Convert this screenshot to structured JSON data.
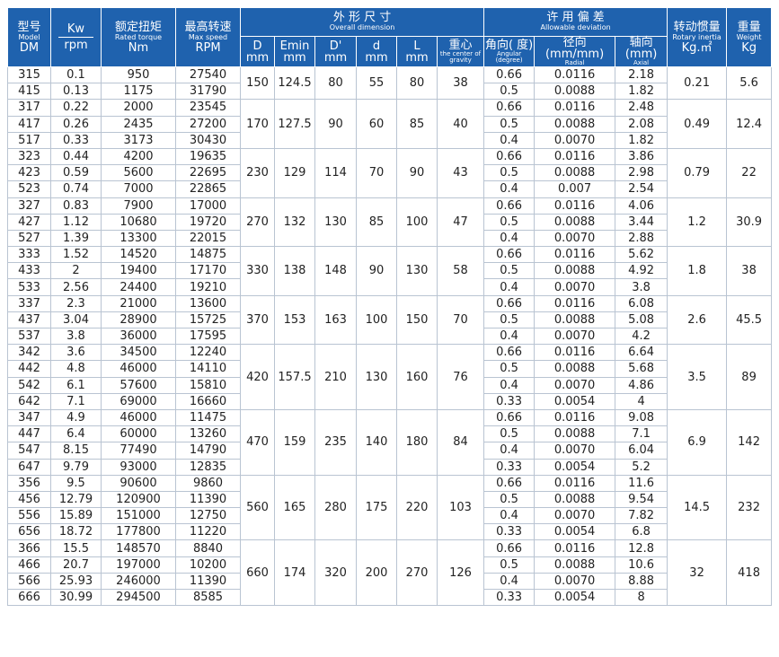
{
  "header": {
    "model": {
      "cn": "型号",
      "en": "Model",
      "unit": "DM"
    },
    "kw": {
      "top": "Kw",
      "bottom": "rpm"
    },
    "torque": {
      "cn": "额定扭矩",
      "en": "Rated torque",
      "unit": "Nm"
    },
    "speed": {
      "cn": "最高转速",
      "en": "Max speed",
      "unit": "RPM"
    },
    "dimension": {
      "cn": "外 形 尺 寸",
      "en": "Overall dimension",
      "columns": [
        {
          "label": "D",
          "unit": "mm"
        },
        {
          "label": "Emin",
          "unit": "mm"
        },
        {
          "label": "D'",
          "unit": "mm"
        },
        {
          "label": "d",
          "unit": "mm"
        },
        {
          "label": "L",
          "unit": "mm"
        },
        {
          "label": "重心",
          "unit": "the center of gravity"
        }
      ]
    },
    "deviation": {
      "cn": "许 用 偏 差",
      "en": "Allowable deviation",
      "columns": [
        {
          "label": "角向( 度)",
          "unit": "Angular (degree)"
        },
        {
          "label": "径向(mm/mm)",
          "unit": "Radial"
        },
        {
          "label": "轴向(mm)",
          "unit": "Axial"
        }
      ]
    },
    "inertia": {
      "cn": "转动惯量",
      "en": "Rotary inertia",
      "unit": "Kg.㎡"
    },
    "weight": {
      "cn": "重量",
      "en": "Weight",
      "unit": "Kg"
    }
  },
  "groups": [
    {
      "dimensions": [
        "150",
        "124.5",
        "80",
        "55",
        "80",
        "38"
      ],
      "inertia": "0.21",
      "weight": "5.6",
      "rows": [
        [
          "315",
          "0.1",
          "950",
          "27540",
          "0.66",
          "0.0116",
          "2.18"
        ],
        [
          "415",
          "0.13",
          "1175",
          "31790",
          "0.5",
          "0.0088",
          "1.82"
        ]
      ]
    },
    {
      "dimensions": [
        "170",
        "127.5",
        "90",
        "60",
        "85",
        "40"
      ],
      "inertia": "0.49",
      "weight": "12.4",
      "rows": [
        [
          "317",
          "0.22",
          "2000",
          "23545",
          "0.66",
          "0.0116",
          "2.48"
        ],
        [
          "417",
          "0.26",
          "2435",
          "27200",
          "0.5",
          "0.0088",
          "2.08"
        ],
        [
          "517",
          "0.33",
          "3173",
          "30430",
          "0.4",
          "0.0070",
          "1.82"
        ]
      ]
    },
    {
      "dimensions": [
        "230",
        "129",
        "114",
        "70",
        "90",
        "43"
      ],
      "inertia": "0.79",
      "weight": "22",
      "rows": [
        [
          "323",
          "0.44",
          "4200",
          "19635",
          "0.66",
          "0.0116",
          "3.86"
        ],
        [
          "423",
          "0.59",
          "5600",
          "22695",
          "0.5",
          "0.0088",
          "2.98"
        ],
        [
          "523",
          "0.74",
          "7000",
          "22865",
          "0.4",
          "0.007",
          "2.54"
        ]
      ]
    },
    {
      "dimensions": [
        "270",
        "132",
        "130",
        "85",
        "100",
        "47"
      ],
      "inertia": "1.2",
      "weight": "30.9",
      "rows": [
        [
          "327",
          "0.83",
          "7900",
          "17000",
          "0.66",
          "0.0116",
          "4.06"
        ],
        [
          "427",
          "1.12",
          "10680",
          "19720",
          "0.5",
          "0.0088",
          "3.44"
        ],
        [
          "527",
          "1.39",
          "13300",
          "22015",
          "0.4",
          "0.0070",
          "2.88"
        ]
      ]
    },
    {
      "dimensions": [
        "330",
        "138",
        "148",
        "90",
        "130",
        "58"
      ],
      "inertia": "1.8",
      "weight": "38",
      "rows": [
        [
          "333",
          "1.52",
          "14520",
          "14875",
          "0.66",
          "0.0116",
          "5.62"
        ],
        [
          "433",
          "2",
          "19400",
          "17170",
          "0.5",
          "0.0088",
          "4.92"
        ],
        [
          "533",
          "2.56",
          "24400",
          "19210",
          "0.4",
          "0.0070",
          "3.8"
        ]
      ]
    },
    {
      "dimensions": [
        "370",
        "153",
        "163",
        "100",
        "150",
        "70"
      ],
      "inertia": "2.6",
      "weight": "45.5",
      "rows": [
        [
          "337",
          "2.3",
          "21000",
          "13600",
          "0.66",
          "0.0116",
          "6.08"
        ],
        [
          "437",
          "3.04",
          "28900",
          "15725",
          "0.5",
          "0.0088",
          "5.08"
        ],
        [
          "537",
          "3.8",
          "36000",
          "17595",
          "0.4",
          "0.0070",
          "4.2"
        ]
      ]
    },
    {
      "dimensions": [
        "420",
        "157.5",
        "210",
        "130",
        "160",
        "76"
      ],
      "inertia": "3.5",
      "weight": "89",
      "rows": [
        [
          "342",
          "3.6",
          "34500",
          "12240",
          "0.66",
          "0.0116",
          "6.64"
        ],
        [
          "442",
          "4.8",
          "46000",
          "14110",
          "0.5",
          "0.0088",
          "5.68"
        ],
        [
          "542",
          "6.1",
          "57600",
          "15810",
          "0.4",
          "0.0070",
          "4.86"
        ],
        [
          "642",
          "7.1",
          "69000",
          "16660",
          "0.33",
          "0.0054",
          "4"
        ]
      ]
    },
    {
      "dimensions": [
        "470",
        "159",
        "235",
        "140",
        "180",
        "84"
      ],
      "inertia": "6.9",
      "weight": "142",
      "rows": [
        [
          "347",
          "4.9",
          "46000",
          "11475",
          "0.66",
          "0.0116",
          "9.08"
        ],
        [
          "447",
          "6.4",
          "60000",
          "13260",
          "0.5",
          "0.0088",
          "7.1"
        ],
        [
          "547",
          "8.15",
          "77490",
          "14790",
          "0.4",
          "0.0070",
          "6.04"
        ],
        [
          "647",
          "9.79",
          "93000",
          "12835",
          "0.33",
          "0.0054",
          "5.2"
        ]
      ]
    },
    {
      "dimensions": [
        "560",
        "165",
        "280",
        "175",
        "220",
        "103"
      ],
      "inertia": "14.5",
      "weight": "232",
      "rows": [
        [
          "356",
          "9.5",
          "90600",
          "9860",
          "0.66",
          "0.0116",
          "11.6"
        ],
        [
          "456",
          "12.79",
          "120900",
          "11390",
          "0.5",
          "0.0088",
          "9.54"
        ],
        [
          "556",
          "15.89",
          "151000",
          "12750",
          "0.4",
          "0.0070",
          "7.82"
        ],
        [
          "656",
          "18.72",
          "177800",
          "11220",
          "0.33",
          "0.0054",
          "6.8"
        ]
      ]
    },
    {
      "dimensions": [
        "660",
        "174",
        "320",
        "200",
        "270",
        "126"
      ],
      "inertia": "32",
      "weight": "418",
      "rows": [
        [
          "366",
          "15.5",
          "148570",
          "8840",
          "0.66",
          "0.0116",
          "12.8"
        ],
        [
          "466",
          "20.7",
          "197000",
          "10200",
          "0.5",
          "0.0088",
          "10.6"
        ],
        [
          "566",
          "25.93",
          "246000",
          "11390",
          "0.4",
          "0.0070",
          "8.88"
        ],
        [
          "666",
          "30.99",
          "294500",
          "8585",
          "0.33",
          "0.0054",
          "8"
        ]
      ]
    }
  ]
}
